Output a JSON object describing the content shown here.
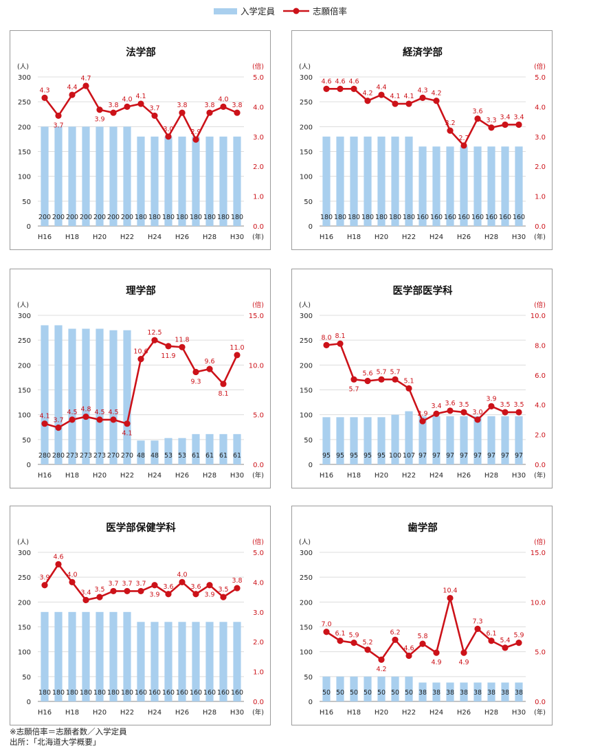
{
  "legend": {
    "bar_label": "入学定員",
    "line_label": "志願倍率"
  },
  "colors": {
    "bar": "#a9cfee",
    "line": "#cc1219",
    "label_red": "#cc1219"
  },
  "common": {
    "left_unit": "(人)",
    "right_unit": "(倍)",
    "year_unit": "(年)"
  },
  "footer": {
    "note": "※志願倍率＝志願者数／入学定員",
    "source": "出所：「北海道大学概要」"
  },
  "chart_data": [
    {
      "type": "bar+line",
      "title": "法学部",
      "categories": [
        "H16",
        "H17",
        "H18",
        "H19",
        "H20",
        "H21",
        "H22",
        "H23",
        "H24",
        "H25",
        "H26",
        "H27",
        "H28",
        "H29",
        "H30"
      ],
      "x_tick_labels": [
        "H16",
        "",
        "H18",
        "",
        "H20",
        "",
        "H22",
        "",
        "H24",
        "",
        "H26",
        "",
        "H28",
        "",
        "H30"
      ],
      "left_ticks": [
        "0",
        "50",
        "100",
        "150",
        "200",
        "250",
        "300"
      ],
      "right_ticks": [
        "0.0",
        "1.0",
        "2.0",
        "3.0",
        "4.0",
        "5.0"
      ],
      "ylim_left": [
        0,
        300
      ],
      "ylim_right": [
        0,
        5
      ],
      "series": [
        {
          "name": "入学定員",
          "axis": "left",
          "values": [
            200,
            200,
            200,
            200,
            200,
            200,
            200,
            180,
            180,
            180,
            180,
            180,
            180,
            180,
            180
          ]
        },
        {
          "name": "志願倍率",
          "axis": "right",
          "values": [
            4.3,
            3.7,
            4.4,
            4.7,
            3.9,
            3.8,
            4.0,
            4.1,
            3.7,
            3.0,
            3.8,
            2.9,
            3.8,
            4.0,
            3.8
          ],
          "labels": [
            "4.3",
            "3.7",
            "4.4",
            "4.7",
            "3.9",
            "3.8",
            "4.0",
            "4.1",
            "3.7",
            "3.0",
            "3.8",
            "2.9",
            "3.8",
            "4.0",
            "3.8"
          ],
          "label_pos": [
            "a",
            "b",
            "a",
            "a",
            "b",
            "a",
            "a",
            "a",
            "a",
            "a",
            "a",
            "a",
            "a",
            "a",
            "a"
          ]
        }
      ]
    },
    {
      "type": "bar+line",
      "title": "経済学部",
      "categories": [
        "H16",
        "H17",
        "H18",
        "H19",
        "H20",
        "H21",
        "H22",
        "H23",
        "H24",
        "H25",
        "H26",
        "H27",
        "H28",
        "H29",
        "H30"
      ],
      "x_tick_labels": [
        "H16",
        "",
        "H18",
        "",
        "H20",
        "",
        "H22",
        "",
        "H24",
        "",
        "H26",
        "",
        "H28",
        "",
        "H30"
      ],
      "left_ticks": [
        "0",
        "50",
        "100",
        "150",
        "200",
        "250",
        "300"
      ],
      "right_ticks": [
        "0.0",
        "1.0",
        "2.0",
        "3.0",
        "4.0",
        "5.0"
      ],
      "ylim_left": [
        0,
        300
      ],
      "ylim_right": [
        0,
        5
      ],
      "series": [
        {
          "name": "入学定員",
          "axis": "left",
          "values": [
            180,
            180,
            180,
            180,
            180,
            180,
            180,
            160,
            160,
            160,
            160,
            160,
            160,
            160,
            160
          ]
        },
        {
          "name": "志願倍率",
          "axis": "right",
          "values": [
            4.6,
            4.6,
            4.6,
            4.2,
            4.4,
            4.1,
            4.1,
            4.3,
            4.2,
            3.2,
            2.7,
            3.6,
            3.3,
            3.4,
            3.4
          ],
          "labels": [
            "4.6",
            "4.6",
            "4.6",
            "4.2",
            "4.4",
            "4.1",
            "4.1",
            "4.3",
            "4.2",
            "3.2",
            "2.7",
            "3.6",
            "3.3",
            "3.4",
            "3.4"
          ],
          "label_pos": [
            "a",
            "a",
            "a",
            "a",
            "a",
            "a",
            "a",
            "a",
            "a",
            "a",
            "a",
            "a",
            "a",
            "a",
            "a"
          ]
        }
      ]
    },
    {
      "type": "bar+line",
      "title": "理学部",
      "categories": [
        "H16",
        "H17",
        "H18",
        "H19",
        "H20",
        "H21",
        "H22",
        "H23",
        "H24",
        "H25",
        "H26",
        "H27",
        "H28",
        "H29",
        "H30"
      ],
      "x_tick_labels": [
        "H16",
        "",
        "H18",
        "",
        "H20",
        "",
        "H22",
        "",
        "H24",
        "",
        "H26",
        "",
        "H28",
        "",
        "H30"
      ],
      "left_ticks": [
        "0",
        "50",
        "100",
        "150",
        "200",
        "250",
        "300"
      ],
      "right_ticks": [
        "0.0",
        "5.0",
        "10.0",
        "15.0"
      ],
      "ylim_left": [
        0,
        300
      ],
      "ylim_right": [
        0,
        15
      ],
      "series": [
        {
          "name": "入学定員",
          "axis": "left",
          "values": [
            280,
            280,
            273,
            273,
            273,
            270,
            270,
            48,
            48,
            53,
            53,
            61,
            61,
            61,
            61
          ]
        },
        {
          "name": "志願倍率",
          "axis": "right",
          "values": [
            4.1,
            3.7,
            4.5,
            4.8,
            4.5,
            4.5,
            4.1,
            10.6,
            12.5,
            11.9,
            11.8,
            9.3,
            9.6,
            8.1,
            11.0
          ],
          "labels": [
            "4.1",
            "3.7",
            "4.5",
            "4.8",
            "4.5",
            "4.5",
            "4.1",
            "10.6",
            "12.5",
            "11.9",
            "11.8",
            "9.3",
            "9.6",
            "8.1",
            "11.0"
          ],
          "label_pos": [
            "a",
            "a",
            "a",
            "a",
            "a",
            "a",
            "b",
            "a",
            "a",
            "b",
            "a",
            "b",
            "a",
            "b",
            "a"
          ]
        }
      ]
    },
    {
      "type": "bar+line",
      "title": "医学部医学科",
      "categories": [
        "H16",
        "H17",
        "H18",
        "H19",
        "H20",
        "H21",
        "H22",
        "H23",
        "H24",
        "H25",
        "H26",
        "H27",
        "H28",
        "H29",
        "H30"
      ],
      "x_tick_labels": [
        "H16",
        "",
        "H18",
        "",
        "H20",
        "",
        "H22",
        "",
        "H24",
        "",
        "H26",
        "",
        "H28",
        "",
        "H30"
      ],
      "left_ticks": [
        "0",
        "50",
        "100",
        "150",
        "200",
        "250",
        "300"
      ],
      "right_ticks": [
        "0.0",
        "2.0",
        "4.0",
        "6.0",
        "8.0",
        "10.0"
      ],
      "ylim_left": [
        0,
        300
      ],
      "ylim_right": [
        0,
        10
      ],
      "series": [
        {
          "name": "入学定員",
          "axis": "left",
          "values": [
            95,
            95,
            95,
            95,
            95,
            100,
            107,
            97,
            97,
            97,
            97,
            97,
            97,
            97,
            97
          ]
        },
        {
          "name": "志願倍率",
          "axis": "right",
          "values": [
            8.0,
            8.1,
            5.7,
            5.6,
            5.7,
            5.7,
            5.1,
            2.9,
            3.4,
            3.6,
            3.5,
            3.0,
            3.9,
            3.5,
            3.5
          ],
          "labels": [
            "8.0",
            "8.1",
            "5.7",
            "5.6",
            "5.7",
            "5.7",
            "5.1",
            "2.9",
            "3.4",
            "3.6",
            "3.5",
            "3.0",
            "3.9",
            "3.5",
            "3.5"
          ],
          "label_pos": [
            "a",
            "a",
            "b",
            "a",
            "a",
            "a",
            "a",
            "a",
            "a",
            "a",
            "a",
            "a",
            "a",
            "a",
            "a"
          ]
        }
      ]
    },
    {
      "type": "bar+line",
      "title": "医学部保健学科",
      "categories": [
        "H16",
        "H17",
        "H18",
        "H19",
        "H20",
        "H21",
        "H22",
        "H23",
        "H24",
        "H25",
        "H26",
        "H27",
        "H28",
        "H29",
        "H30"
      ],
      "x_tick_labels": [
        "H16",
        "",
        "H18",
        "",
        "H20",
        "",
        "H22",
        "",
        "H24",
        "",
        "H26",
        "",
        "H28",
        "",
        "H30"
      ],
      "left_ticks": [
        "0",
        "50",
        "100",
        "150",
        "200",
        "250",
        "300"
      ],
      "right_ticks": [
        "0.0",
        "1.0",
        "2.0",
        "3.0",
        "4.0",
        "5.0"
      ],
      "ylim_left": [
        0,
        300
      ],
      "ylim_right": [
        0,
        5
      ],
      "series": [
        {
          "name": "入学定員",
          "axis": "left",
          "values": [
            180,
            180,
            180,
            180,
            180,
            180,
            180,
            160,
            160,
            160,
            160,
            160,
            160,
            160,
            160
          ]
        },
        {
          "name": "志願倍率",
          "axis": "right",
          "values": [
            3.9,
            4.6,
            4.0,
            3.4,
            3.5,
            3.7,
            3.7,
            3.7,
            3.9,
            3.6,
            4.0,
            3.6,
            3.9,
            3.5,
            3.8
          ],
          "labels": [
            "3.9",
            "4.6",
            "4.0",
            "3.4",
            "3.5",
            "3.7",
            "3.7",
            "3.7",
            "3.9",
            "3.6",
            "4.0",
            "3.6",
            "3.9",
            "3.5",
            "3.8"
          ],
          "label_pos": [
            "a",
            "a",
            "a",
            "a",
            "a",
            "a",
            "a",
            "a",
            "b",
            "a",
            "a",
            "a",
            "b",
            "a",
            "a"
          ]
        }
      ]
    },
    {
      "type": "bar+line",
      "title": "歯学部",
      "categories": [
        "H16",
        "H17",
        "H18",
        "H19",
        "H20",
        "H21",
        "H22",
        "H23",
        "H24",
        "H25",
        "H26",
        "H27",
        "H28",
        "H29",
        "H30"
      ],
      "x_tick_labels": [
        "H16",
        "",
        "H18",
        "",
        "H20",
        "",
        "H22",
        "",
        "H24",
        "",
        "H26",
        "",
        "H28",
        "",
        "H30"
      ],
      "left_ticks": [
        "0",
        "50",
        "100",
        "150",
        "200",
        "250",
        "300"
      ],
      "right_ticks": [
        "0.0",
        "5.0",
        "10.0",
        "15.0"
      ],
      "ylim_left": [
        0,
        300
      ],
      "ylim_right": [
        0,
        15
      ],
      "series": [
        {
          "name": "入学定員",
          "axis": "left",
          "values": [
            50,
            50,
            50,
            50,
            50,
            50,
            50,
            38,
            38,
            38,
            38,
            38,
            38,
            38,
            38
          ]
        },
        {
          "name": "志願倍率",
          "axis": "right",
          "values": [
            7.0,
            6.1,
            5.9,
            5.2,
            4.2,
            6.2,
            4.6,
            5.8,
            4.9,
            10.4,
            4.9,
            7.3,
            6.1,
            5.4,
            5.9
          ],
          "labels": [
            "7.0",
            "6.1",
            "5.9",
            "5.2",
            "4.2",
            "6.2",
            "4.6",
            "5.8",
            "4.9",
            "10.4",
            "4.9",
            "7.3",
            "6.1",
            "5.4",
            "5.9"
          ],
          "label_pos": [
            "a",
            "a",
            "a",
            "a",
            "b",
            "a",
            "a",
            "a",
            "b",
            "a",
            "b",
            "a",
            "a",
            "a",
            "a"
          ]
        }
      ]
    }
  ]
}
